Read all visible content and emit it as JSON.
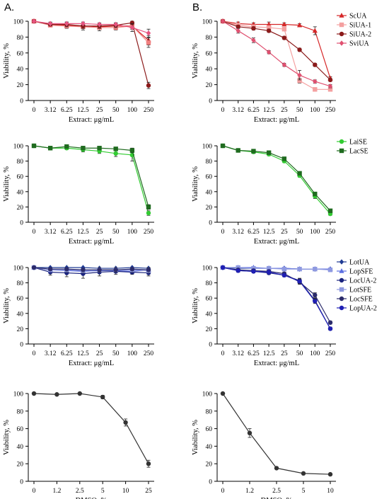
{
  "panel_labels": [
    "A.",
    "B."
  ],
  "chart_data": [
    {
      "type": "line",
      "ylabel": "Viability, %",
      "xlabel": "Extract: μg/mL",
      "categories": [
        "0",
        "3.12",
        "6.25",
        "12.5",
        "25",
        "50",
        "100",
        "250"
      ],
      "ylim": [
        0,
        100
      ],
      "yticks": [
        0,
        20,
        40,
        60,
        80,
        100
      ],
      "series": [
        {
          "marker": "triangle",
          "color": "#d62728",
          "values": [
            100,
            96,
            95,
            94,
            93,
            94,
            94,
            76
          ],
          "err": [
            1,
            2,
            3,
            3,
            3,
            3,
            4,
            6
          ]
        },
        {
          "marker": "square",
          "color": "#f08080",
          "values": [
            100,
            95,
            94,
            93,
            92,
            92,
            94,
            73
          ],
          "err": [
            1,
            2,
            3,
            4,
            4,
            3,
            4,
            6
          ]
        },
        {
          "marker": "circle",
          "color": "#8b1a1a",
          "values": [
            100,
            96,
            96,
            94,
            94,
            95,
            98,
            19
          ],
          "err": [
            1,
            2,
            3,
            3,
            3,
            3,
            2,
            4
          ]
        },
        {
          "marker": "diamond",
          "color": "#e75480",
          "values": [
            100,
            97,
            97,
            97,
            96,
            96,
            92,
            85
          ],
          "err": [
            1,
            2,
            2,
            2,
            2,
            2,
            5,
            5
          ]
        }
      ]
    },
    {
      "type": "line",
      "ylabel": "Viability, %",
      "xlabel": "Extract: μg/mL",
      "categories": [
        "0",
        "3.12",
        "6.25",
        "12.5",
        "25",
        "50",
        "100",
        "250"
      ],
      "ylim": [
        0,
        100
      ],
      "yticks": [
        0,
        20,
        40,
        60,
        80,
        100
      ],
      "series": [
        {
          "name": "ScUA",
          "marker": "triangle",
          "color": "#d62728",
          "values": [
            100,
            97,
            96,
            96,
            96,
            95,
            88,
            28
          ],
          "err": [
            1,
            2,
            2,
            3,
            2,
            2,
            5,
            2
          ]
        },
        {
          "name": "SiUA-1",
          "marker": "square",
          "color": "#f4a0a0",
          "values": [
            100,
            95,
            93,
            92,
            90,
            25,
            14,
            14
          ],
          "err": [
            1,
            2,
            2,
            2,
            2,
            3,
            1,
            1
          ]
        },
        {
          "name": "SiUA-2",
          "marker": "circle",
          "color": "#8b1a1a",
          "values": [
            100,
            93,
            91,
            88,
            79,
            64,
            45,
            26
          ],
          "err": [
            1,
            2,
            2,
            2,
            2,
            2,
            2,
            2
          ]
        },
        {
          "name": "SviUA",
          "marker": "diamond",
          "color": "#e05070",
          "values": [
            100,
            88,
            76,
            61,
            45,
            32,
            24,
            18
          ],
          "err": [
            1,
            3,
            3,
            2,
            2,
            6,
            2,
            2
          ]
        }
      ]
    },
    {
      "type": "line",
      "ylabel": "Viability, %",
      "xlabel": "Extract: μg/mL",
      "categories": [
        "0",
        "3.12",
        "6.25",
        "12.5",
        "25",
        "50",
        "100",
        "250"
      ],
      "ylim": [
        0,
        100
      ],
      "yticks": [
        0,
        20,
        40,
        60,
        80,
        100
      ],
      "series": [
        {
          "marker": "circle",
          "color": "#33cc33",
          "values": [
            100,
            97,
            97,
            95,
            93,
            90,
            88,
            12
          ],
          "err": [
            1,
            2,
            2,
            3,
            3,
            4,
            8,
            3
          ]
        },
        {
          "marker": "square",
          "color": "#1f6b1f",
          "values": [
            100,
            97,
            99,
            97,
            97,
            96,
            94,
            20
          ],
          "err": [
            1,
            2,
            2,
            2,
            2,
            2,
            3,
            3
          ]
        }
      ]
    },
    {
      "type": "line",
      "ylabel": "Viability, %",
      "xlabel": "Extract: μg/mL",
      "categories": [
        "0",
        "3.12",
        "6.25",
        "12.5",
        "25",
        "50",
        "100",
        "250"
      ],
      "ylim": [
        0,
        100
      ],
      "yticks": [
        0,
        20,
        40,
        60,
        80,
        100
      ],
      "series": [
        {
          "name": "LaiSE",
          "marker": "circle",
          "color": "#33cc33",
          "values": [
            100,
            94,
            92,
            89,
            80,
            61,
            34,
            11
          ],
          "err": [
            1,
            2,
            2,
            2,
            2,
            2,
            3,
            2
          ]
        },
        {
          "name": "LacSE",
          "marker": "square",
          "color": "#1f6b1f",
          "values": [
            100,
            94,
            93,
            91,
            83,
            64,
            37,
            15
          ],
          "err": [
            1,
            2,
            2,
            2,
            2,
            2,
            2,
            2
          ]
        }
      ]
    },
    {
      "type": "line",
      "ylabel": "Viability, %",
      "xlabel": "Extract: μg/mL",
      "categories": [
        "0",
        "3.12",
        "6.25",
        "12.5",
        "25",
        "50",
        "100",
        "250"
      ],
      "ylim": [
        0,
        100
      ],
      "yticks": [
        0,
        20,
        40,
        60,
        80,
        100
      ],
      "series": [
        {
          "marker": "diamond",
          "color": "#1f3a93",
          "values": [
            100,
            100,
            100,
            100,
            99,
            99,
            100,
            99
          ],
          "err": [
            1,
            1,
            1,
            1,
            1,
            1,
            1,
            1
          ]
        },
        {
          "marker": "triangle",
          "color": "#5b6ee1",
          "values": [
            100,
            97,
            96,
            95,
            96,
            96,
            95,
            97
          ],
          "err": [
            1,
            3,
            3,
            3,
            3,
            3,
            3,
            3
          ]
        },
        {
          "marker": "circle",
          "color": "#1a237e",
          "values": [
            100,
            94,
            93,
            92,
            94,
            95,
            94,
            93
          ],
          "err": [
            1,
            4,
            5,
            6,
            5,
            4,
            3,
            4
          ]
        },
        {
          "marker": "square",
          "color": "#8e99e0",
          "values": [
            100,
            97,
            97,
            96,
            97,
            97,
            97,
            96
          ],
          "err": [
            1,
            2,
            3,
            3,
            3,
            3,
            3,
            3
          ]
        },
        {
          "marker": "circle",
          "color": "#2b2b6b",
          "values": [
            100,
            98,
            98,
            97,
            97,
            97,
            98,
            97
          ],
          "err": [
            1,
            2,
            2,
            2,
            2,
            2,
            2,
            2
          ]
        }
      ]
    },
    {
      "type": "line",
      "ylabel": "Viability, %",
      "xlabel": "Extract: μg/mL",
      "categories": [
        "0",
        "3.12",
        "6.25",
        "12.5",
        "25",
        "50",
        "100",
        "250"
      ],
      "ylim": [
        0,
        100
      ],
      "yticks": [
        0,
        20,
        40,
        60,
        80,
        100
      ],
      "series": [
        {
          "name": "LotUA",
          "marker": "diamond",
          "color": "#1f3a93",
          "values": [
            100,
            99,
            99,
            99,
            99,
            98,
            98,
            98
          ],
          "err": [
            1,
            1,
            1,
            1,
            1,
            1,
            1,
            1
          ]
        },
        {
          "name": "LopSFE",
          "marker": "triangle",
          "color": "#5b6ee1",
          "values": [
            100,
            100,
            100,
            99,
            99,
            98,
            98,
            98
          ],
          "err": [
            1,
            1,
            1,
            1,
            1,
            1,
            1,
            1
          ]
        },
        {
          "name": "LocUA-2",
          "marker": "circle",
          "color": "#1a237e",
          "values": [
            100,
            96,
            95,
            93,
            90,
            83,
            57,
            20
          ],
          "err": [
            1,
            2,
            2,
            2,
            2,
            3,
            3,
            2
          ]
        },
        {
          "name": "LotSFE",
          "marker": "square",
          "color": "#8e99e0",
          "values": [
            100,
            100,
            99,
            99,
            98,
            98,
            98,
            97
          ],
          "err": [
            1,
            1,
            1,
            1,
            1,
            1,
            1,
            1
          ]
        },
        {
          "name": "LocSFE",
          "marker": "circle",
          "color": "#2b2b6b",
          "values": [
            100,
            97,
            96,
            95,
            92,
            81,
            64,
            28
          ],
          "err": [
            1,
            2,
            2,
            2,
            2,
            3,
            3,
            2
          ]
        },
        {
          "name": "LopUA-2",
          "marker": "circle",
          "color": "#1f1fb4",
          "values": [
            100,
            96,
            95,
            94,
            90,
            82,
            56,
            20
          ],
          "err": [
            1,
            2,
            2,
            2,
            2,
            3,
            3,
            2
          ]
        }
      ]
    },
    {
      "type": "line",
      "ylabel": "Viability, %",
      "xlabel": "DMSO: %",
      "categories": [
        "0",
        "1.2",
        "2.5",
        "5",
        "10",
        "25"
      ],
      "ylim": [
        0,
        100
      ],
      "yticks": [
        0,
        20,
        40,
        60,
        80,
        100
      ],
      "series": [
        {
          "marker": "circle",
          "color": "#333333",
          "values": [
            100,
            99,
            100,
            96,
            67,
            20
          ],
          "err": [
            1,
            1,
            1,
            2,
            4,
            4
          ]
        }
      ]
    },
    {
      "type": "line",
      "ylabel": "Viability, %",
      "xlabel": "DMSO: %",
      "categories": [
        "0",
        "1.2",
        "2.5",
        "5",
        "10"
      ],
      "ylim": [
        0,
        100
      ],
      "yticks": [
        0,
        20,
        40,
        60,
        80,
        100
      ],
      "series": [
        {
          "marker": "circle",
          "color": "#333333",
          "values": [
            100,
            55,
            15,
            9,
            8
          ],
          "err": [
            1,
            5,
            1,
            1,
            1
          ]
        }
      ]
    }
  ]
}
